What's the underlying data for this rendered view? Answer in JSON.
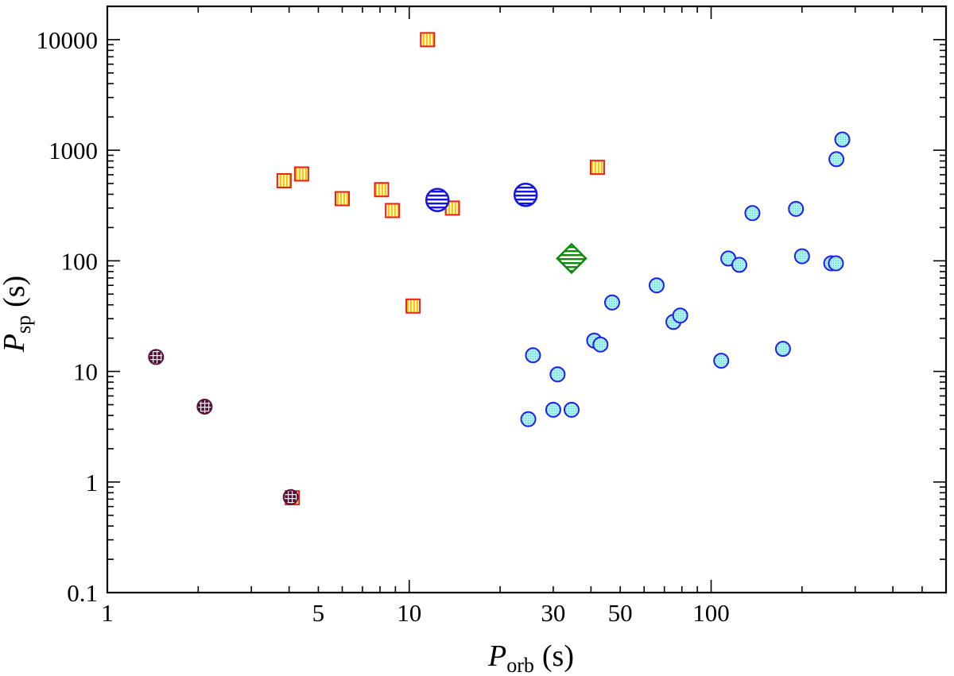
{
  "chart_data": {
    "type": "scatter",
    "xscale": "log",
    "yscale": "log",
    "xlim": [
      1,
      600
    ],
    "ylim": [
      0.1,
      20000
    ],
    "grid": false,
    "x_ticks": [
      1,
      5,
      10,
      30,
      50,
      100
    ],
    "x_tick_labels": [
      "1",
      "5",
      "10",
      "30",
      "50",
      "100"
    ],
    "y_ticks": [
      0.1,
      1,
      10,
      100,
      1000,
      10000
    ],
    "y_tick_labels": [
      "0.1",
      "1",
      "10",
      "100",
      "1000",
      "10000"
    ],
    "xlabel": {
      "main": "P",
      "sub": "orb",
      "unit": "(s)"
    },
    "ylabel": {
      "main": "P",
      "sub": "sp",
      "unit": "(s)"
    },
    "colors": {
      "square_edge": "#e8201a",
      "square_fill": "#ffc400",
      "circle_edge": "#1e1ef0",
      "circle_fill": "#a6f2ee",
      "big_circle_edge": "#1414e6",
      "diamond_edge": "#0a8c0a",
      "dark_edge": "#5a0f38",
      "dark_fill": "#ffffff"
    },
    "series": [
      {
        "marker": "square-vstripe",
        "points": [
          {
            "x": 3.85,
            "y": 530
          },
          {
            "x": 4.4,
            "y": 610
          },
          {
            "x": 6.0,
            "y": 365
          },
          {
            "x": 8.1,
            "y": 440
          },
          {
            "x": 8.8,
            "y": 285
          },
          {
            "x": 10.3,
            "y": 39
          },
          {
            "x": 11.5,
            "y": 10000
          },
          {
            "x": 13.9,
            "y": 300
          },
          {
            "x": 42.0,
            "y": 700
          },
          {
            "x": 4.1,
            "y": 0.72
          }
        ]
      },
      {
        "marker": "circle-dotted",
        "points": [
          {
            "x": 24.8,
            "y": 3.7
          },
          {
            "x": 25.7,
            "y": 14
          },
          {
            "x": 30.0,
            "y": 4.5
          },
          {
            "x": 31.0,
            "y": 9.4
          },
          {
            "x": 34.5,
            "y": 4.5
          },
          {
            "x": 41.0,
            "y": 19
          },
          {
            "x": 43.0,
            "y": 17.5
          },
          {
            "x": 47.0,
            "y": 42
          },
          {
            "x": 66.0,
            "y": 60
          },
          {
            "x": 75.0,
            "y": 28
          },
          {
            "x": 79.0,
            "y": 32
          },
          {
            "x": 108.0,
            "y": 12.5
          },
          {
            "x": 114.0,
            "y": 105
          },
          {
            "x": 124.0,
            "y": 92
          },
          {
            "x": 137.0,
            "y": 270
          },
          {
            "x": 173.0,
            "y": 16
          },
          {
            "x": 191.0,
            "y": 295
          },
          {
            "x": 200.0,
            "y": 110
          },
          {
            "x": 250.0,
            "y": 95
          },
          {
            "x": 259.0,
            "y": 95
          },
          {
            "x": 260.0,
            "y": 830
          },
          {
            "x": 272.0,
            "y": 1250
          }
        ]
      },
      {
        "marker": "circle-hstripe-large",
        "points": [
          {
            "x": 12.4,
            "y": 355
          },
          {
            "x": 24.3,
            "y": 395
          }
        ]
      },
      {
        "marker": "diamond-hstripe",
        "points": [
          {
            "x": 34.5,
            "y": 105
          }
        ]
      },
      {
        "marker": "circle-crosshatch",
        "points": [
          {
            "x": 1.45,
            "y": 13.5
          },
          {
            "x": 2.1,
            "y": 4.8
          },
          {
            "x": 4.05,
            "y": 0.73
          }
        ]
      }
    ]
  }
}
